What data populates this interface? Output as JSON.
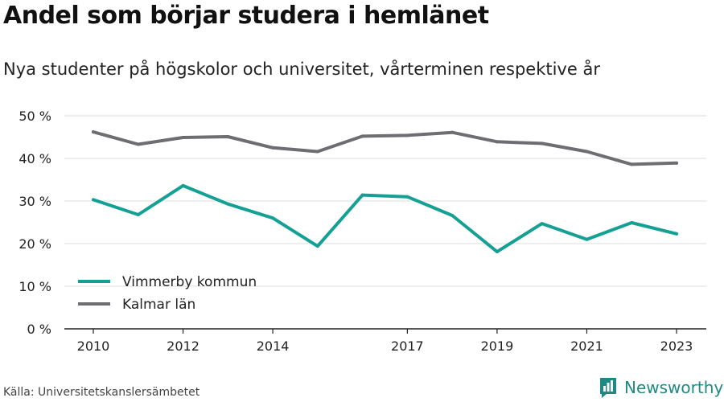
{
  "header": {
    "title": "Andel som börjar studera i hemlänet",
    "subtitle": "Nya studenter på högskolor och universitet, vårterminen respektive år"
  },
  "footer": {
    "source": "Källa: Universitetskanslersämbetet",
    "brand": "Newsworthy"
  },
  "colors": {
    "brand": "#1f8a84",
    "grid": "#dddddd"
  },
  "chart_data": {
    "type": "line",
    "y_ticks": [
      "0 %",
      "10 %",
      "20 %",
      "30 %",
      "40 %",
      "50 %"
    ],
    "ylim": [
      0,
      50
    ],
    "x_ticks": [
      "2010",
      "2012",
      "2014",
      "2017",
      "2019",
      "2021",
      "2023"
    ],
    "xlim": [
      2010,
      2023
    ],
    "grid": "horizontal",
    "legend_position": "bottom-left",
    "x": [
      2010,
      2011,
      2012,
      2013,
      2014,
      2015,
      2016,
      2017,
      2018,
      2019,
      2020,
      2021,
      2022,
      2023
    ],
    "series": [
      {
        "name": "Vimmerby kommun",
        "color": "#14a094",
        "values": [
          30.3,
          26.8,
          33.6,
          29.3,
          26.0,
          19.4,
          31.4,
          31.0,
          26.6,
          18.1,
          24.7,
          21.0,
          24.9,
          22.3
        ]
      },
      {
        "name": "Kalmar län",
        "color": "#6d6d72",
        "values": [
          46.2,
          43.3,
          44.9,
          45.1,
          42.5,
          41.6,
          45.2,
          45.4,
          46.1,
          43.9,
          43.5,
          41.6,
          38.6,
          38.9
        ]
      }
    ]
  }
}
